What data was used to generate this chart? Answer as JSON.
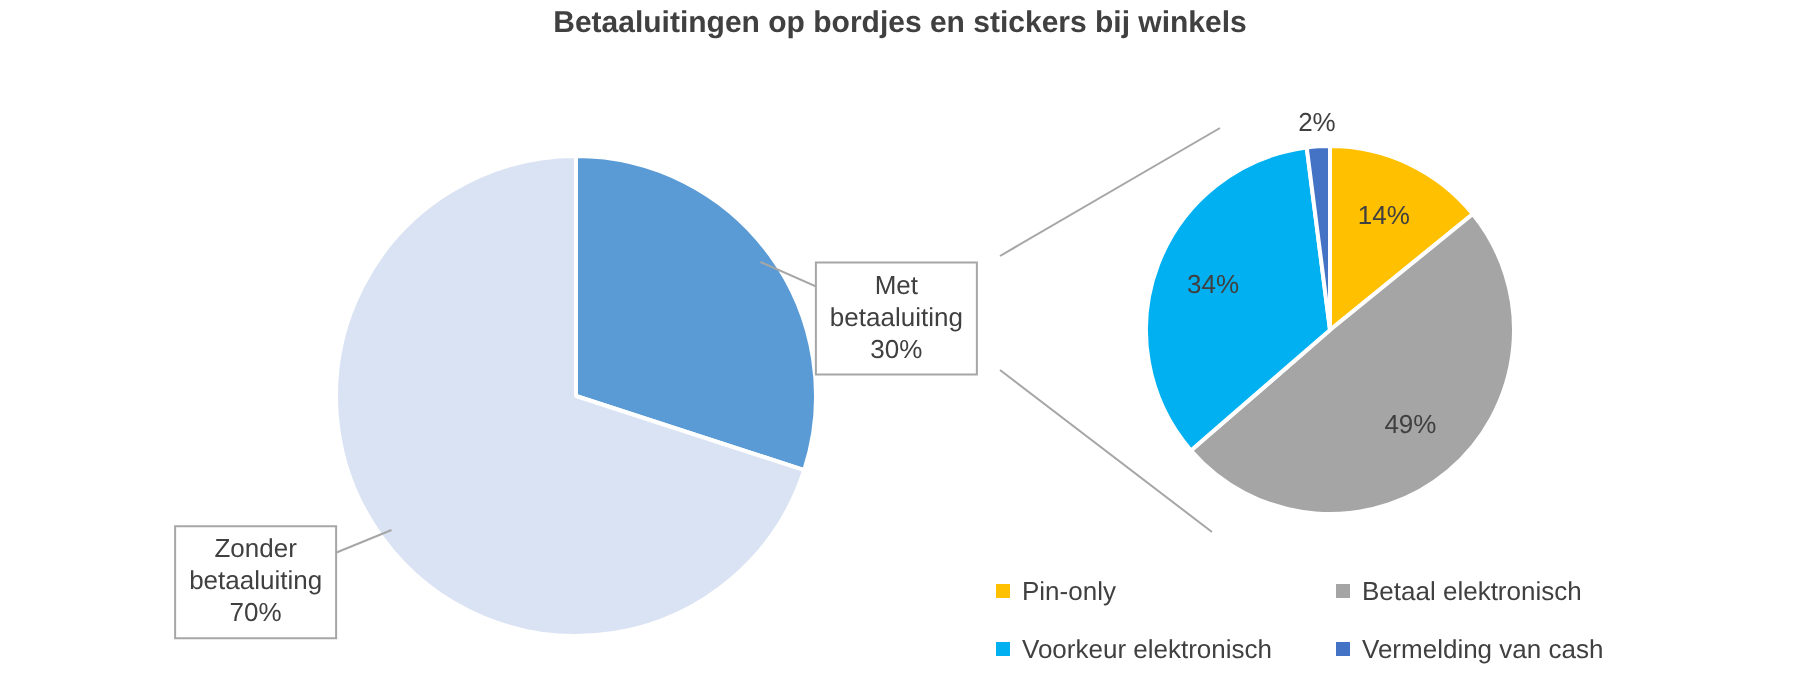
{
  "chart_data": [
    {
      "type": "pie",
      "title": "Betaaluitingen op bordjes en stickers bij winkels",
      "categories": [
        "Met betaaluiting",
        "Zonder betaaluiting"
      ],
      "values": [
        30,
        70
      ],
      "colors": [
        "#5b9bd5",
        "#dae3f3"
      ],
      "value_labels": [
        "30%",
        "70%"
      ],
      "legend": false
    },
    {
      "type": "pie",
      "categories": [
        "Pin-only",
        "Betaal elektronisch",
        "Voorkeur elektronisch",
        "Vermelding van cash"
      ],
      "values": [
        14,
        49,
        34,
        2
      ],
      "colors": [
        "#ffc000",
        "#a5a5a5",
        "#00b0f0",
        "#4472c4"
      ],
      "value_labels": [
        "14%",
        "49%",
        "34%",
        "2%"
      ],
      "legend": "bottom"
    }
  ]
}
